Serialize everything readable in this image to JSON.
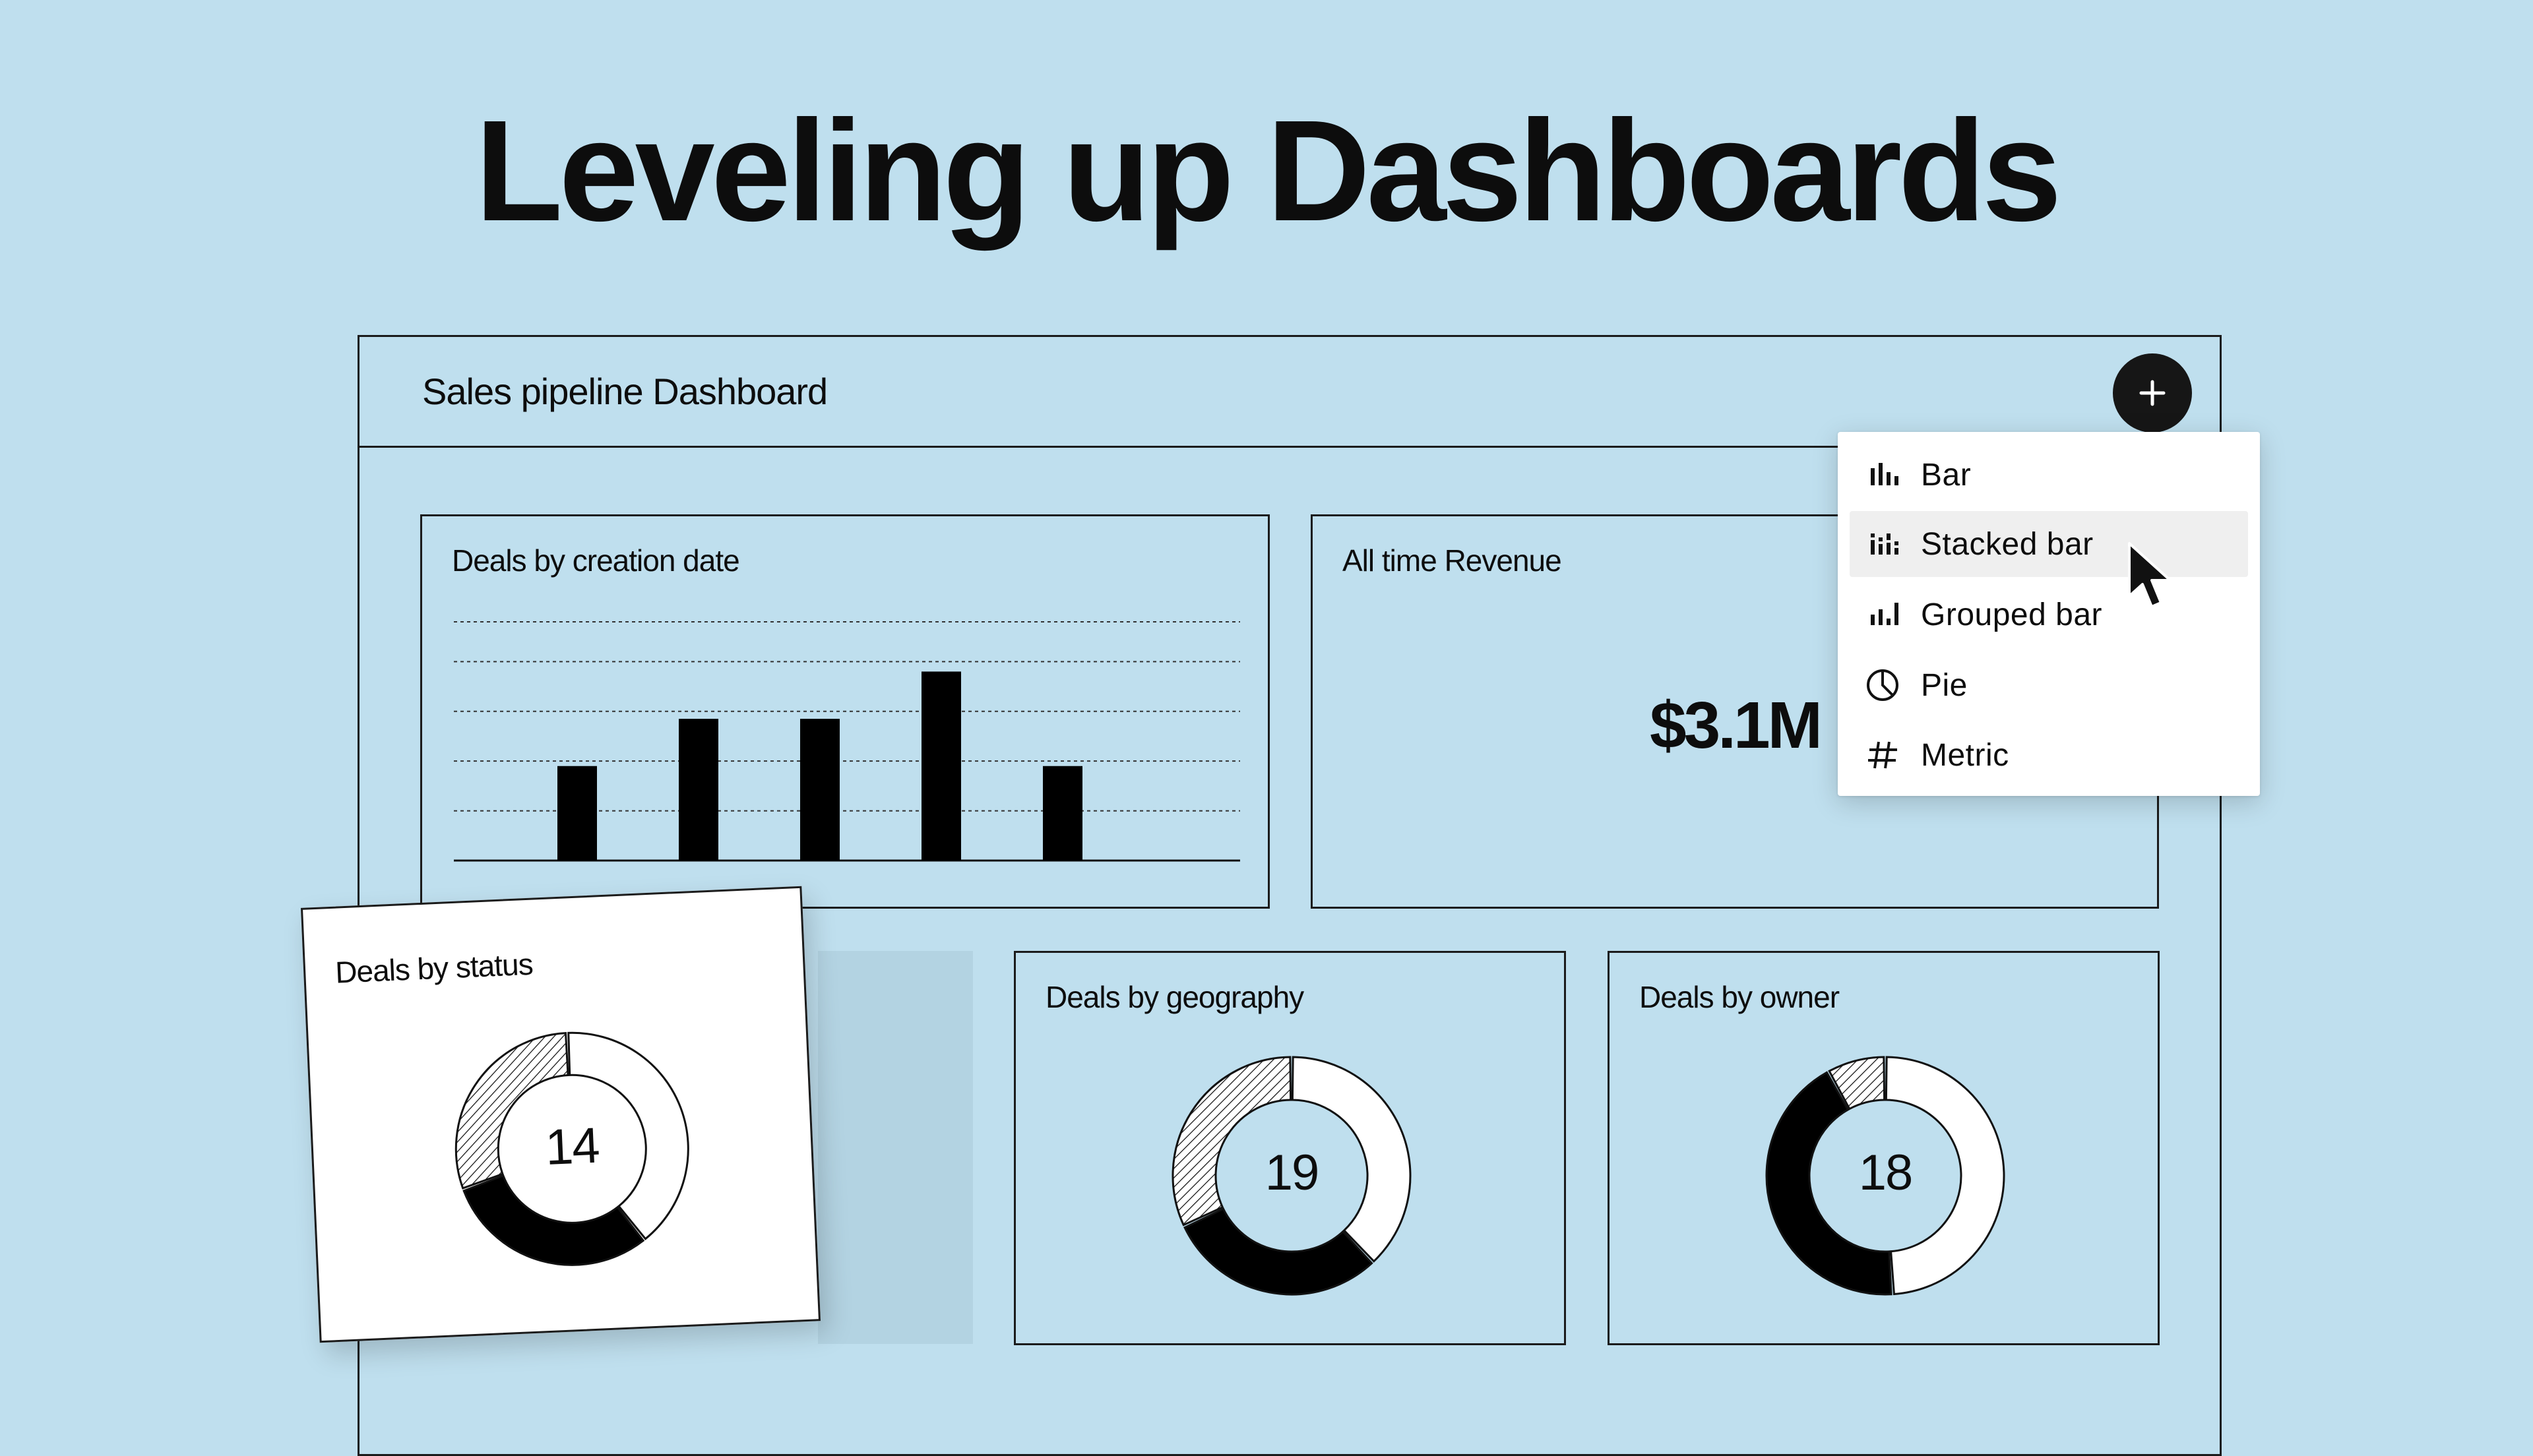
{
  "headline": "Leveling up Dashboards",
  "dashboard": {
    "title": "Sales pipeline Dashboard",
    "add_button_icon": "plus-icon"
  },
  "panels": {
    "creation_date": {
      "title": "Deals by creation date",
      "chart_data": {
        "type": "bar",
        "categories": [
          "",
          "",
          "",
          "",
          ""
        ],
        "values": [
          2,
          3,
          3,
          4,
          2
        ],
        "ylim": [
          0,
          4.8
        ],
        "grid": true,
        "legend": "none"
      }
    },
    "revenue": {
      "title": "All time Revenue",
      "value": "$3.1M"
    },
    "status": {
      "title": "Deals by status",
      "total": "14",
      "chart_data": {
        "type": "pie",
        "slices": [
          {
            "value": 40,
            "fill": "white"
          },
          {
            "value": 30,
            "fill": "black"
          },
          {
            "value": 30,
            "fill": "hatched"
          }
        ]
      }
    },
    "geography": {
      "title": "Deals by geography",
      "total": "19",
      "chart_data": {
        "type": "pie",
        "slices": [
          {
            "value": 38,
            "fill": "white"
          },
          {
            "value": 30,
            "fill": "black"
          },
          {
            "value": 32,
            "fill": "hatched"
          }
        ]
      }
    },
    "owner": {
      "title": "Deals by owner",
      "total": "18",
      "chart_data": {
        "type": "pie",
        "slices": [
          {
            "value": 49,
            "fill": "white"
          },
          {
            "value": 43,
            "fill": "black"
          },
          {
            "value": 8,
            "fill": "hatched"
          }
        ]
      }
    }
  },
  "menu": {
    "items": [
      {
        "label": "Bar",
        "icon": "bar-chart-icon"
      },
      {
        "label": "Stacked bar",
        "icon": "stacked-bar-icon"
      },
      {
        "label": "Grouped bar",
        "icon": "grouped-bar-icon"
      },
      {
        "label": "Pie",
        "icon": "pie-icon"
      },
      {
        "label": "Metric",
        "icon": "hash-icon"
      }
    ],
    "hovered_index": 1
  },
  "colors": {
    "background": "#bfdfee",
    "ink": "#0d0d0d",
    "card": "#ffffff"
  }
}
